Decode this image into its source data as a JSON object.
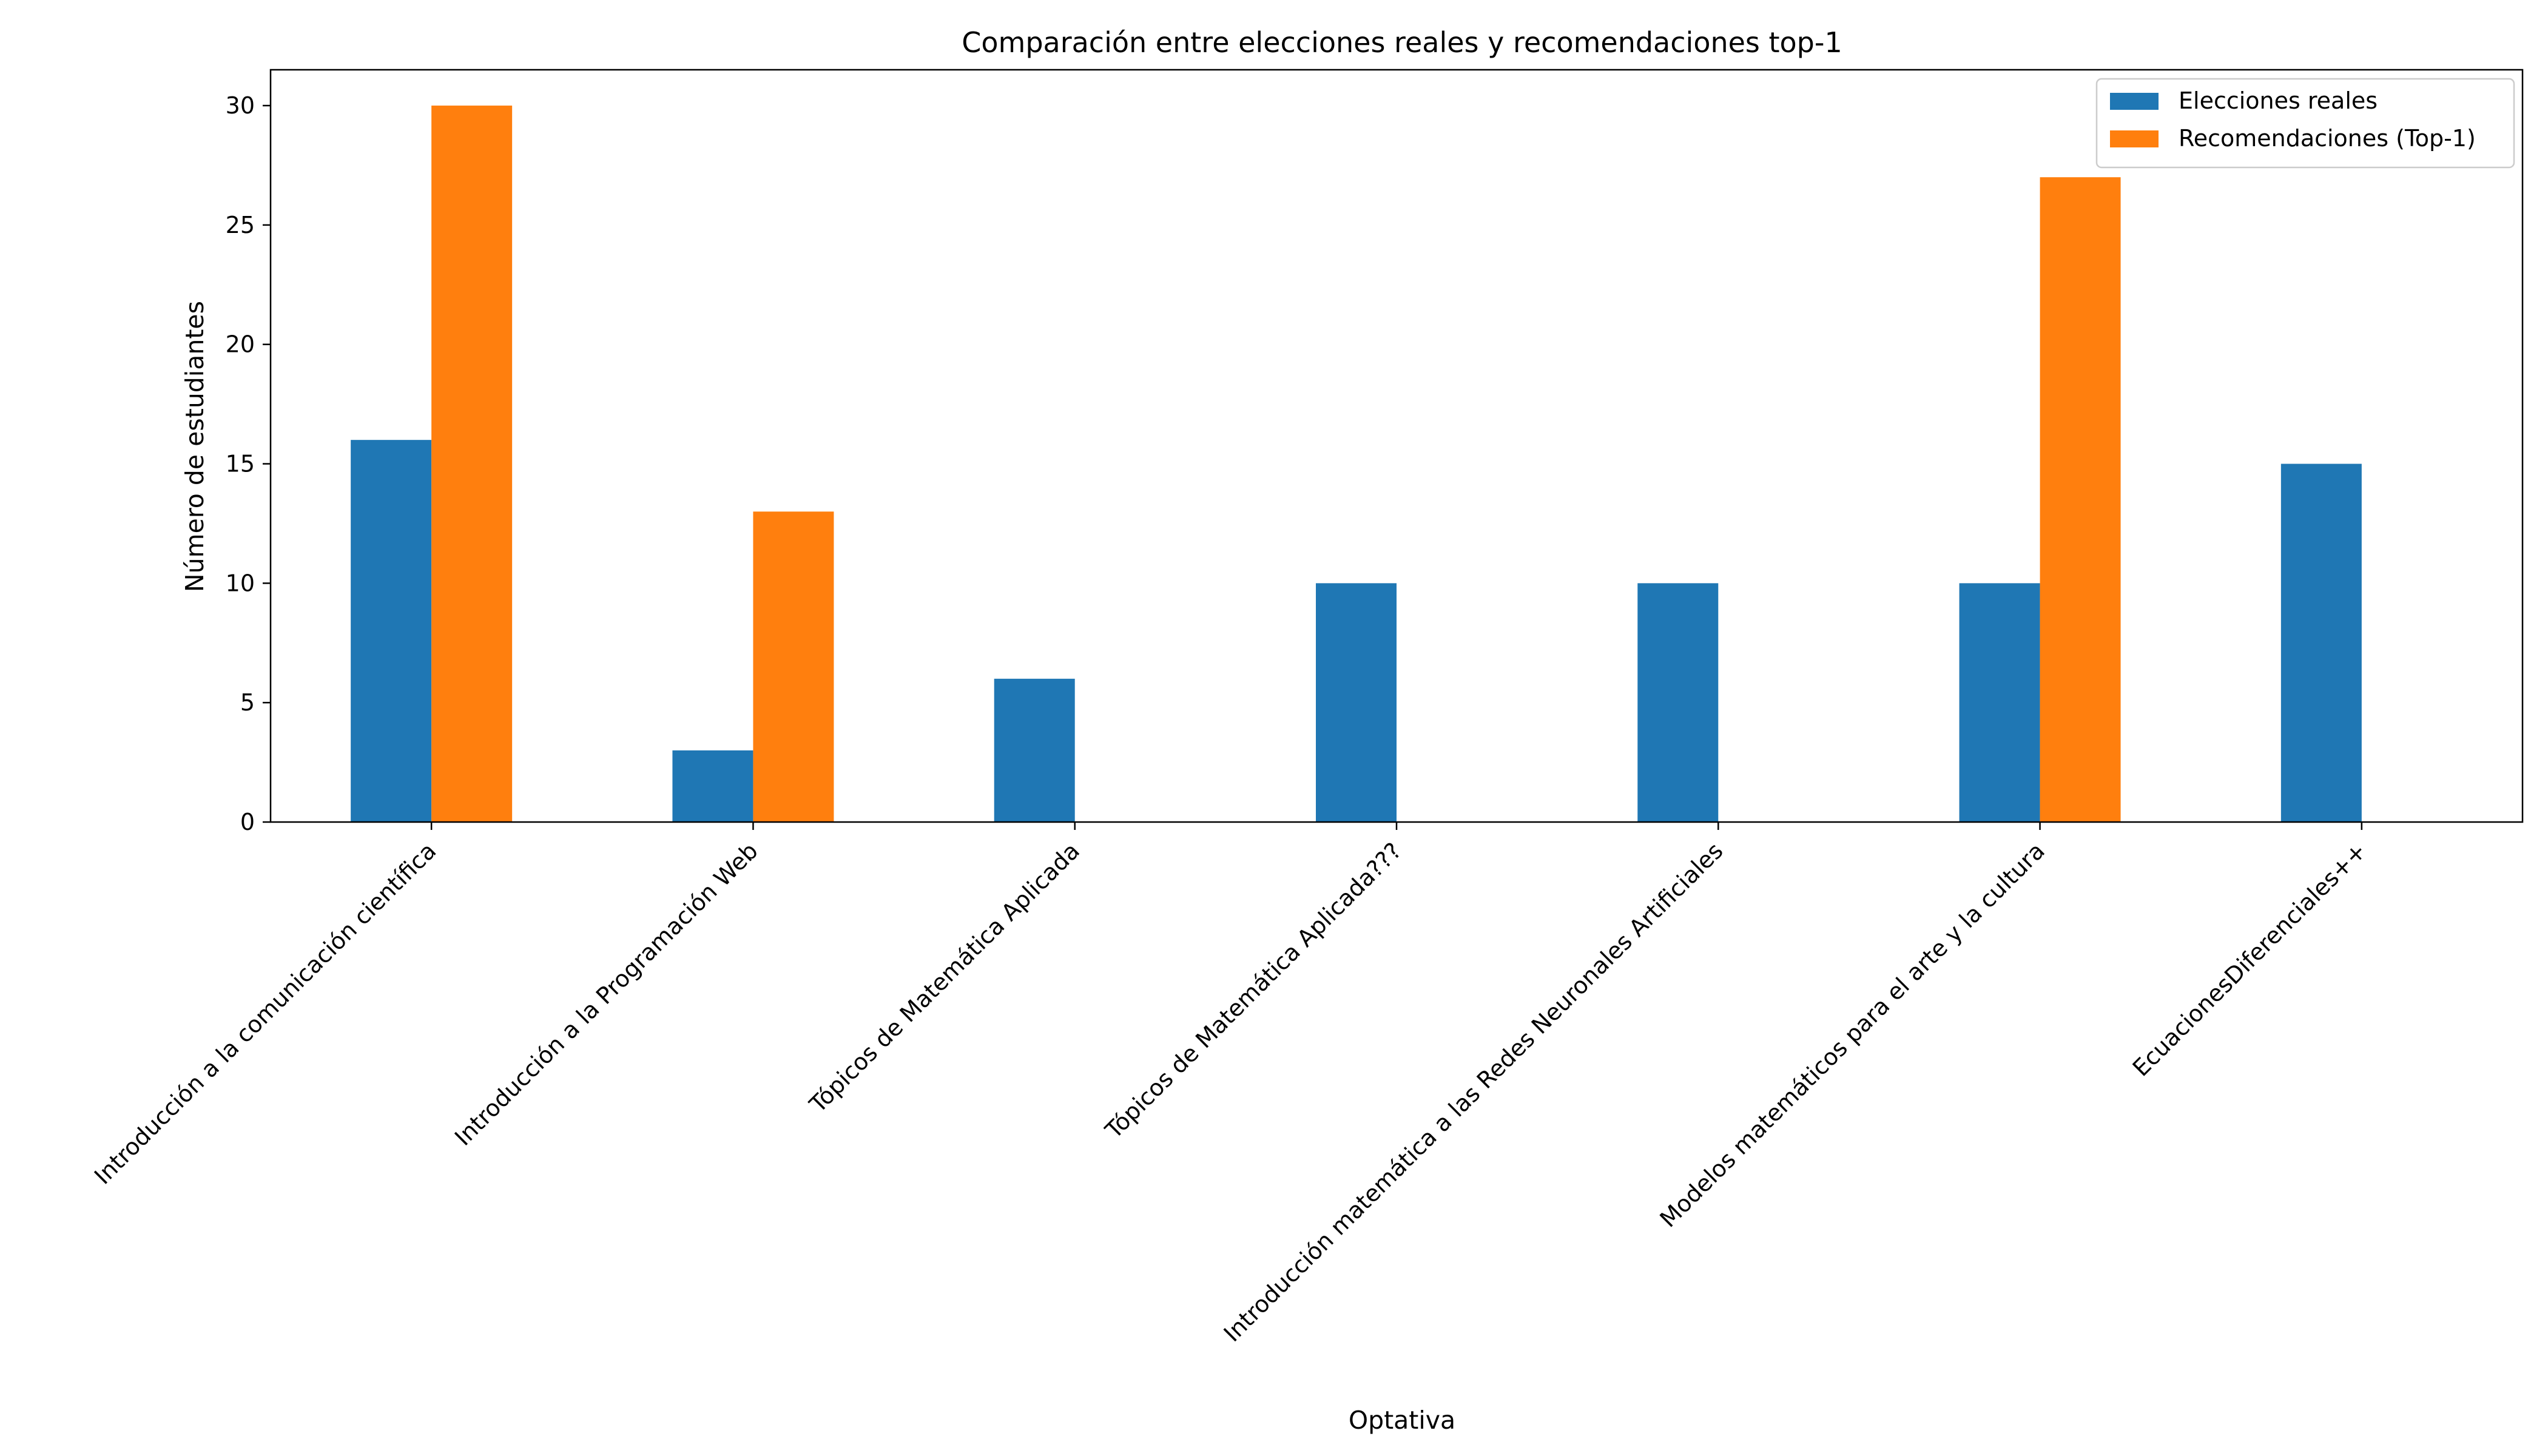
{
  "chart_data": {
    "type": "bar",
    "title": "Comparación entre elecciones reales y recomendaciones top-1",
    "xlabel": "Optativa",
    "ylabel": "Número de estudiantes",
    "ylim": [
      0,
      31.5
    ],
    "yticks": [
      0,
      5,
      10,
      15,
      20,
      25,
      30
    ],
    "grid": false,
    "legend_position": "top-right",
    "categories": [
      "Introducción a la comunicación científica",
      "Introducción a la Programación Web",
      "Tópicos de Matemática Aplicada",
      "Tópicos de Matemática Aplicada???",
      "Introducción matemática a las Redes Neuronales Artificiales",
      "Modelos matemáticos para el arte y la cultura",
      "EcuacionesDiferenciales++"
    ],
    "series": [
      {
        "name": "Elecciones reales",
        "color": "#1f77b4",
        "values": [
          16,
          3,
          6,
          10,
          10,
          10,
          15
        ]
      },
      {
        "name": "Recomendaciones (Top-1)",
        "color": "#ff7f0e",
        "values": [
          30,
          13,
          0,
          0,
          0,
          27,
          0
        ]
      }
    ]
  }
}
